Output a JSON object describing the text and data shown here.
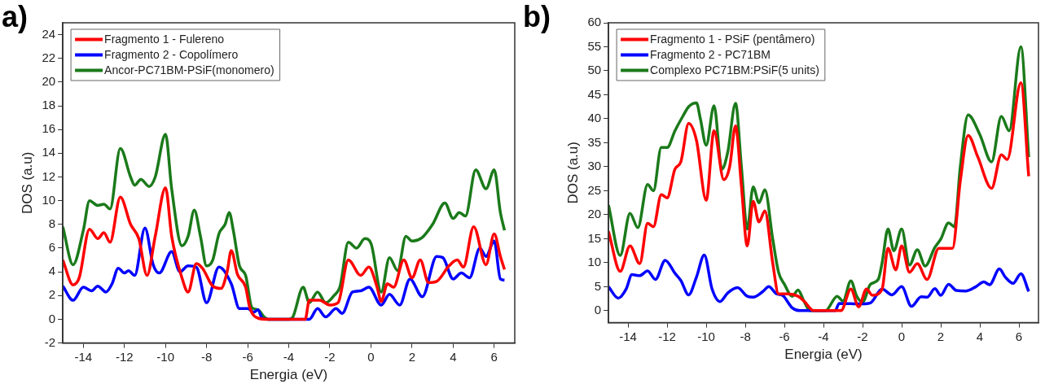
{
  "chart_data": [
    {
      "type": "line",
      "xlabel": "Energia (eV)",
      "ylabel": "DOS (a.u)",
      "annotations": [
        "a)"
      ],
      "legend": "top left",
      "grid": false,
      "marker": "none",
      "xlim": [
        -15,
        7
      ],
      "xticks": [
        -14,
        -12,
        -10,
        -8,
        -6,
        -4,
        -2,
        0,
        2,
        4,
        6
      ],
      "ylim": [
        -2,
        25
      ],
      "yticks": [
        -2,
        0,
        2,
        4,
        6,
        8,
        10,
        12,
        14,
        16,
        18,
        20,
        22,
        24
      ],
      "series": [
        {
          "name": "Fragmento 1 - Fulereno",
          "color": "#ff0000",
          "x": [
            -15,
            -14.5,
            -14.2,
            -13.7,
            -13.3,
            -13,
            -12.7,
            -12.2,
            -11.7,
            -11.3,
            -10.9,
            -10.5,
            -10,
            -9.7,
            -9.2,
            -8.9,
            -8.5,
            -8.2,
            -7.7,
            -7.3,
            -7,
            -6.8,
            -6.5,
            -6.1,
            -5.9,
            -5.5,
            -5,
            -3.2,
            -3,
            -2.5,
            -2,
            -1.6,
            -1.1,
            -0.5,
            -0.1,
            0.3,
            0.5,
            0.8,
            1.1,
            1.6,
            2,
            2.4,
            2.8,
            3.2,
            3.8,
            4.2,
            4.5,
            5,
            5.6,
            6,
            6.3,
            6.5
          ],
          "values": [
            5,
            2.9,
            3.5,
            7.6,
            6.8,
            7.3,
            6.5,
            10.3,
            8,
            6.8,
            3.7,
            7,
            11.1,
            7,
            3.5,
            2.3,
            4.7,
            4.3,
            2.8,
            2.6,
            4,
            5.8,
            3.8,
            2.7,
            1,
            0.1,
            0,
            0,
            1.6,
            1.6,
            1.2,
            1.4,
            5,
            3.7,
            4.4,
            2.7,
            1.5,
            3,
            2.7,
            5,
            3.5,
            5,
            3.1,
            3.2,
            4.5,
            5,
            4.4,
            7.8,
            4.6,
            7.2,
            5.3,
            4.2
          ]
        },
        {
          "name": "Fragmento 2 - Copolímero",
          "color": "#0000ff",
          "x": [
            -15,
            -14.5,
            -14,
            -13.6,
            -13.3,
            -12.9,
            -12.6,
            -12.3,
            -12,
            -11.8,
            -11.5,
            -11,
            -10.6,
            -10.3,
            -9.7,
            -9.3,
            -8.9,
            -8.5,
            -8,
            -7.4,
            -6.8,
            -6.4,
            -6,
            -5.7,
            -5.5,
            -5.3,
            -5,
            -3,
            -2.6,
            -2.2,
            -1.7,
            -1.4,
            -0.9,
            -0.5,
            -0.1,
            0.5,
            0.9,
            1.4,
            1.9,
            2.5,
            3.2,
            3.5,
            4,
            4.4,
            4.8,
            5.3,
            5.6,
            6,
            6.3,
            6.5
          ],
          "values": [
            2.8,
            1.6,
            2.7,
            2.4,
            2.8,
            2.3,
            3,
            4.3,
            3.9,
            4.1,
            3.7,
            7.7,
            4.6,
            3.9,
            5.7,
            4,
            4.5,
            4.4,
            1.4,
            4.4,
            3,
            0.9,
            0.9,
            0.6,
            0.8,
            0.1,
            0,
            0,
            0.9,
            0.2,
            0.9,
            0.5,
            2.3,
            2.4,
            2.7,
            1.2,
            2.1,
            1.2,
            3.4,
            1.9,
            5.3,
            5.2,
            3.4,
            3.9,
            3.5,
            6,
            5.3,
            6.6,
            3.4,
            3.3
          ]
        },
        {
          "name": "Ancor-PC71BM-PSiF(monomero)",
          "color": "#1a7a1a",
          "x": [
            -15,
            -14.5,
            -14,
            -13.7,
            -13.3,
            -13,
            -12.7,
            -12.2,
            -11.7,
            -11.5,
            -11.2,
            -10.8,
            -10.5,
            -10,
            -9.7,
            -9.2,
            -8.9,
            -8.6,
            -8.3,
            -8,
            -7.7,
            -7.4,
            -7.1,
            -6.9,
            -6.7,
            -6.4,
            -6.1,
            -5.8,
            -5.5,
            -5.2,
            -5,
            -4,
            -3.8,
            -3.3,
            -3,
            -2.6,
            -2.2,
            -1.8,
            -1.5,
            -1.1,
            -0.7,
            -0.3,
            0,
            0.5,
            0.9,
            1.3,
            1.7,
            2,
            2.5,
            3,
            3.6,
            4,
            4.3,
            4.6,
            5.1,
            5.6,
            6,
            6.3,
            6.5
          ],
          "values": [
            7.8,
            4.6,
            7.5,
            10,
            9.6,
            9.7,
            9.3,
            14.4,
            12,
            11.3,
            11.8,
            11.2,
            12,
            15.6,
            11,
            6.2,
            7,
            9.2,
            7,
            4.5,
            5,
            7.2,
            8,
            9,
            7.5,
            4.5,
            3.7,
            1,
            0.8,
            0.2,
            0,
            0,
            0.2,
            2.7,
            1.4,
            2.3,
            1.4,
            2,
            2.8,
            6.5,
            6,
            6.8,
            6.4,
            2.3,
            5.2,
            4.1,
            7,
            6.6,
            6.9,
            8,
            9.8,
            8.5,
            9,
            8.7,
            12.6,
            11,
            12.6,
            9,
            7.5
          ]
        }
      ]
    },
    {
      "type": "line",
      "xlabel": "Energia (eV)",
      "ylabel": "DOS (a.u)",
      "annotations": [
        "b)"
      ],
      "legend": "top left",
      "grid": false,
      "marker": "none",
      "xlim": [
        -15,
        7
      ],
      "xticks": [
        -14,
        -12,
        -10,
        -8,
        -6,
        -4,
        -2,
        0,
        2,
        4,
        6
      ],
      "ylim": [
        -2.5,
        60
      ],
      "yticks": [
        0,
        5,
        10,
        15,
        20,
        25,
        30,
        35,
        40,
        45,
        50,
        55,
        60
      ],
      "series": [
        {
          "name": "Fragmento 1 - PSiF (pentâmero)",
          "color": "#ff0000",
          "x": [
            -15,
            -14.4,
            -13.9,
            -13.4,
            -13,
            -12.7,
            -12.3,
            -12,
            -11.6,
            -11.3,
            -10.9,
            -10.5,
            -10,
            -9.6,
            -9.1,
            -8.8,
            -8.5,
            -8.2,
            -7.9,
            -7.6,
            -7.3,
            -7,
            -6.6,
            -6.3,
            -5.8,
            -5.3,
            -5,
            -4.5,
            -3.1,
            -2.6,
            -2.2,
            -1.8,
            -1.5,
            -1,
            -0.7,
            -0.3,
            0,
            0.4,
            0.8,
            1.3,
            1.9,
            2.6,
            3,
            3.4,
            3.9,
            4.6,
            5.1,
            5.4,
            6.1,
            6.5
          ],
          "values": [
            16.5,
            8.2,
            13.5,
            9.8,
            18.2,
            17.5,
            24.2,
            23.5,
            29.5,
            31,
            39,
            35.5,
            23,
            37.5,
            27.3,
            30,
            38.5,
            26,
            13.5,
            22.8,
            18.5,
            20.8,
            10,
            3.5,
            3.5,
            3,
            2,
            0,
            0,
            4.5,
            0.8,
            4.5,
            3.2,
            4.5,
            13,
            8.5,
            13.5,
            8,
            9.8,
            6.5,
            13,
            13,
            27,
            36.5,
            32,
            25.5,
            32.5,
            31.5,
            47.5,
            28
          ]
        },
        {
          "name": "Fragmento 2 - PC71BM",
          "color": "#0000ff",
          "x": [
            -15,
            -14.5,
            -14.1,
            -13.8,
            -13.4,
            -13,
            -12.6,
            -12.1,
            -11.6,
            -11.3,
            -10.9,
            -10.5,
            -10.1,
            -9.7,
            -9.3,
            -8.9,
            -8.4,
            -7.9,
            -7.6,
            -7.1,
            -6.8,
            -6.4,
            -6.1,
            -5.6,
            -5.2,
            -3.4,
            -3.2,
            -2,
            -1.6,
            -1,
            -0.5,
            0,
            0.5,
            1,
            1.3,
            1.7,
            2,
            2.4,
            2.8,
            3.3,
            3.8,
            4.2,
            4.5,
            5,
            5.3,
            5.7,
            6.1,
            6.5
          ],
          "values": [
            5,
            2.6,
            4.5,
            7.5,
            7.3,
            8.3,
            6.5,
            10.5,
            7.8,
            6.3,
            3.3,
            7,
            11.6,
            4.5,
            1.9,
            3.7,
            4.8,
            3,
            2.8,
            4,
            5,
            3.5,
            3.2,
            0.6,
            0,
            0,
            1.5,
            1.4,
            1.6,
            4.5,
            3.3,
            5,
            0.9,
            2.9,
            2.8,
            4.6,
            3.2,
            5.5,
            4.2,
            4.1,
            5,
            6,
            5.4,
            8.7,
            7,
            5.7,
            7.7,
            4
          ]
        },
        {
          "name": "Complexo PC71BM:PSiF(5 units)",
          "color": "#1a7a1a",
          "x": [
            -15,
            -14.4,
            -13.9,
            -13.5,
            -13,
            -12.7,
            -12.3,
            -12,
            -11.6,
            -11.2,
            -10.9,
            -10.5,
            -10.3,
            -10,
            -9.6,
            -9.2,
            -8.9,
            -8.5,
            -8.2,
            -7.9,
            -7.6,
            -7.3,
            -7,
            -6.6,
            -6.3,
            -6,
            -5.6,
            -5.3,
            -5,
            -4.7,
            -3.9,
            -3.3,
            -3,
            -2.6,
            -2.3,
            -2,
            -1.6,
            -1.2,
            -1,
            -0.7,
            -0.4,
            0,
            0.4,
            0.8,
            1.2,
            1.7,
            2,
            2.4,
            2.7,
            3,
            3.4,
            4,
            4.6,
            5.1,
            5.5,
            6.1,
            6.5
          ],
          "values": [
            22,
            11.5,
            20.3,
            17.3,
            26.3,
            25,
            34,
            34,
            37.5,
            40.5,
            42.5,
            43.3,
            40,
            34.5,
            42.7,
            29.5,
            33,
            43.2,
            30,
            17,
            25.8,
            22.5,
            25.2,
            15,
            8,
            5.5,
            3,
            4.3,
            2,
            0,
            0,
            3,
            2,
            6.2,
            3,
            1.8,
            5.5,
            6.5,
            10,
            17,
            12.5,
            17,
            9.5,
            12.7,
            9.3,
            13.2,
            14.9,
            18.3,
            17.5,
            30,
            40.8,
            36.7,
            31,
            40.5,
            37.5,
            55,
            32
          ]
        }
      ]
    }
  ]
}
